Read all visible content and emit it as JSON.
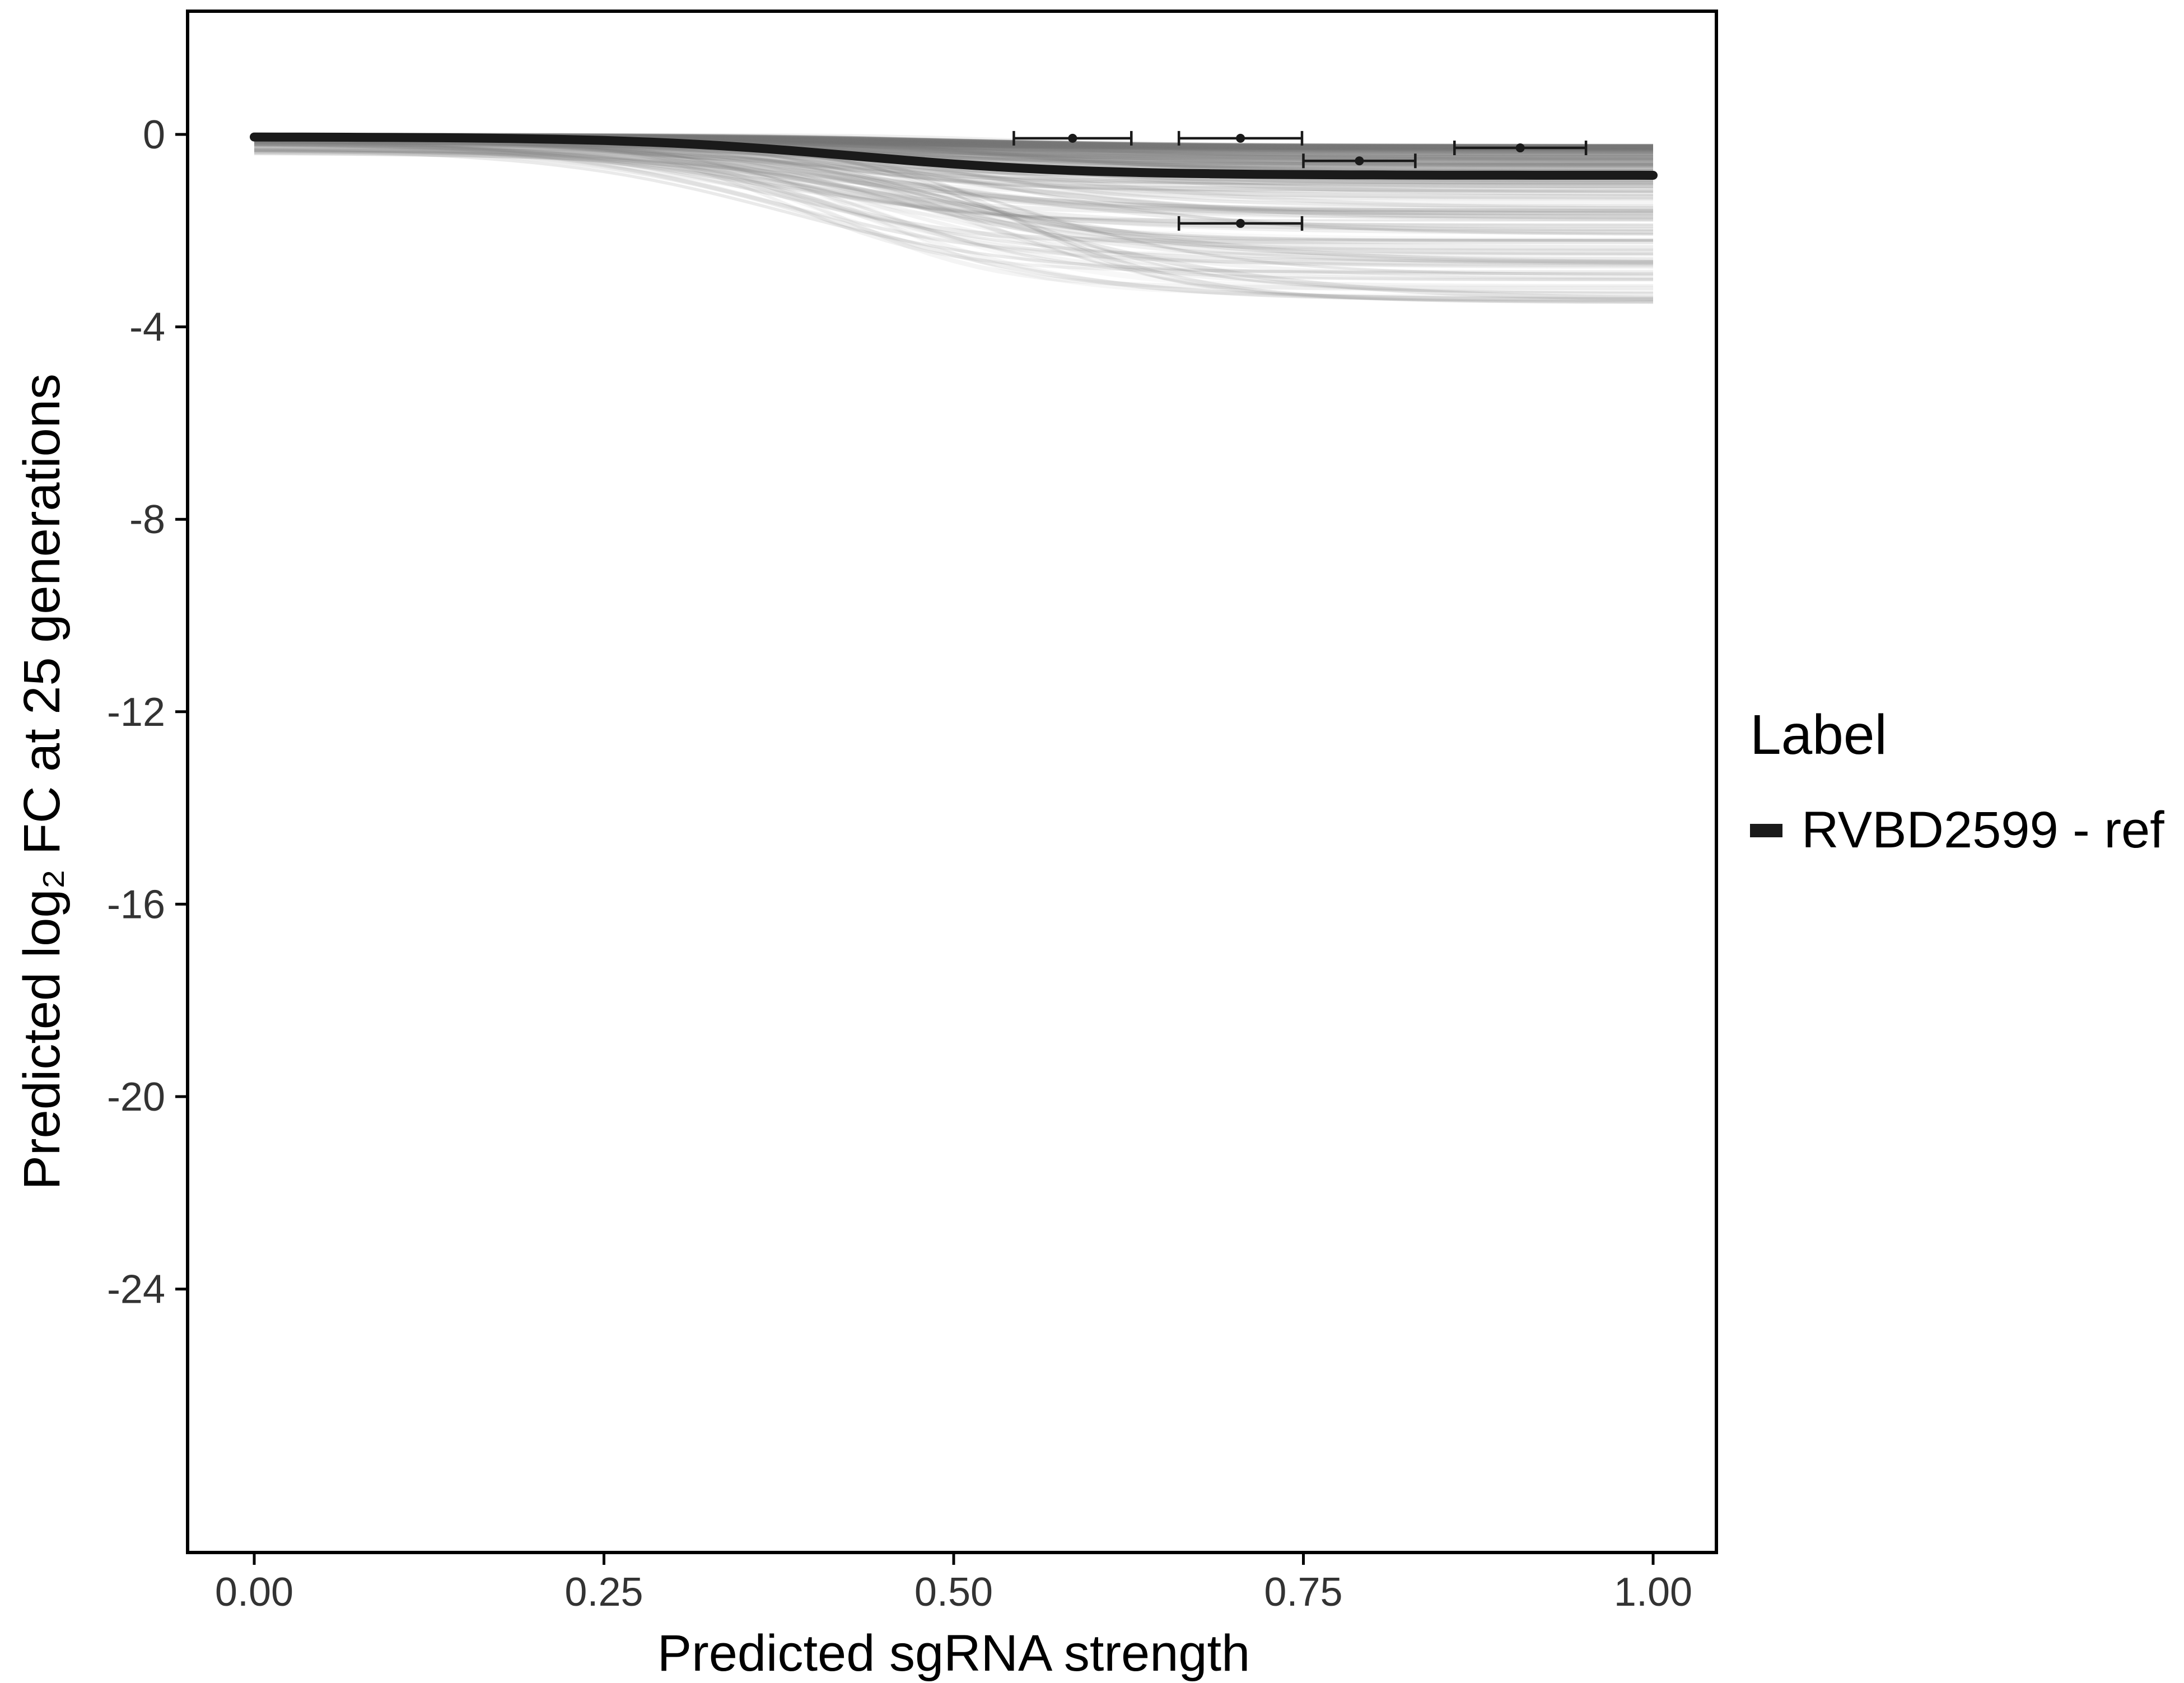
{
  "chart_data": {
    "type": "line",
    "title": "",
    "xlabel": "Predicted sgRNA strength",
    "ylabel": "Predicted  log₂ FC at 25 generations",
    "xlim": [
      0,
      1
    ],
    "ylim": [
      -29.5,
      2.5
    ],
    "x_tick_values": [
      0,
      0.25,
      0.5,
      0.75,
      1.0
    ],
    "x_tick_labels": [
      "0.00",
      "0.25",
      "0.50",
      "0.75",
      "1.00"
    ],
    "y_tick_values": [
      0,
      -4,
      -8,
      -12,
      -16,
      -20,
      -24
    ],
    "y_tick_labels": [
      "0",
      "-4",
      "-8",
      "-12",
      "-16",
      "-20",
      "-24"
    ],
    "grid": false,
    "legend": {
      "position": "right",
      "title": "Label",
      "entries": [
        {
          "label": "RVBD2599 - ref",
          "color": "#1a1a1a"
        }
      ]
    },
    "reference_curve": {
      "name": "RVBD2599 - ref",
      "color": "#1a1a1a",
      "start": -0.05,
      "end": -0.85,
      "inflection_x": 0.43,
      "slope_k": 0.08,
      "sample_points": [
        {
          "x": 0.0,
          "y": -0.05
        },
        {
          "x": 0.25,
          "y": -0.08
        },
        {
          "x": 0.4,
          "y": -0.3
        },
        {
          "x": 0.5,
          "y": -0.6
        },
        {
          "x": 0.6,
          "y": -0.76
        },
        {
          "x": 0.75,
          "y": -0.82
        },
        {
          "x": 1.0,
          "y": -0.85
        }
      ]
    },
    "background_curves": {
      "description": "ensemble of semi-transparent sigmoid prediction curves",
      "count": 230,
      "color": "#7a7a7a",
      "start_value_range": [
        0,
        -0.5
      ],
      "end_value_range": [
        -0.25,
        -3.6
      ],
      "inflection_x_range": [
        0.36,
        0.55
      ],
      "opacity_range": [
        0.04,
        0.18
      ]
    },
    "points_with_error_bars": [
      {
        "x": 0.585,
        "y": -0.08,
        "xmin": 0.543,
        "xmax": 0.627
      },
      {
        "x": 0.705,
        "y": -0.08,
        "xmin": 0.661,
        "xmax": 0.749
      },
      {
        "x": 0.79,
        "y": -0.55,
        "xmin": 0.75,
        "xmax": 0.83
      },
      {
        "x": 0.905,
        "y": -0.28,
        "xmin": 0.858,
        "xmax": 0.952
      },
      {
        "x": 0.705,
        "y": -1.85,
        "xmin": 0.661,
        "xmax": 0.749
      }
    ],
    "colors": {
      "panel_border": "#000000",
      "tick_mark": "#000000",
      "tick_label": "#333333",
      "error_bar": "#1a1a1a",
      "background": "#ffffff"
    }
  }
}
